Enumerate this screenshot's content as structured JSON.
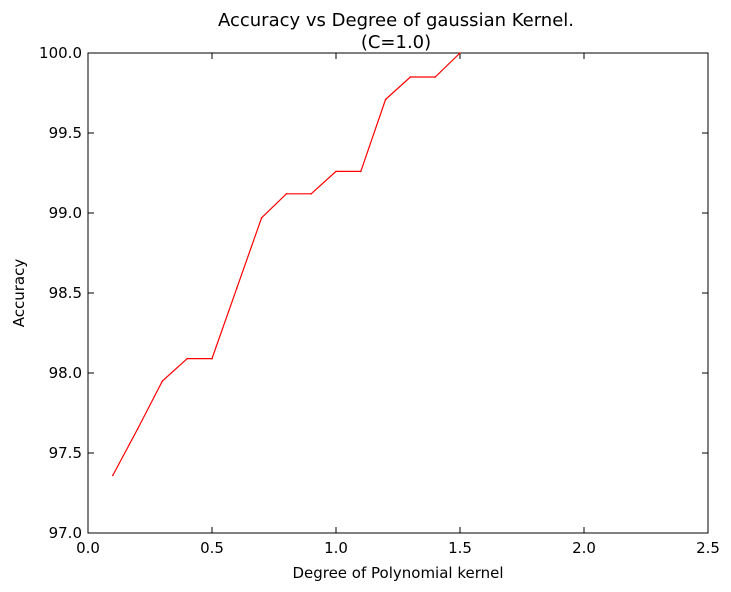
{
  "chart_data": {
    "type": "line",
    "title": "Accuracy vs Degree of gaussian Kernel.",
    "subtitle": "(C=1.0)",
    "xlabel": "Degree of Polynomial kernel",
    "ylabel": "Accuracy",
    "xlim": [
      0.0,
      2.5
    ],
    "ylim": [
      97.0,
      100.0
    ],
    "xticks": [
      "0.0",
      "0.5",
      "1.0",
      "1.5",
      "2.0",
      "2.5"
    ],
    "yticks": [
      "97.0",
      "97.5",
      "98.0",
      "98.5",
      "99.0",
      "99.5",
      "100.0"
    ],
    "grid": false,
    "series": [
      {
        "color": "#ff0000",
        "x": [
          0.1,
          0.2,
          0.3,
          0.4,
          0.5,
          0.6,
          0.7,
          0.8,
          0.9,
          1.0,
          1.1,
          1.2,
          1.3,
          1.4,
          1.5
        ],
        "y": [
          97.36,
          97.65,
          97.95,
          98.09,
          98.09,
          98.53,
          98.97,
          99.12,
          99.12,
          99.26,
          99.26,
          99.71,
          99.85,
          99.85,
          100.0
        ]
      }
    ]
  }
}
